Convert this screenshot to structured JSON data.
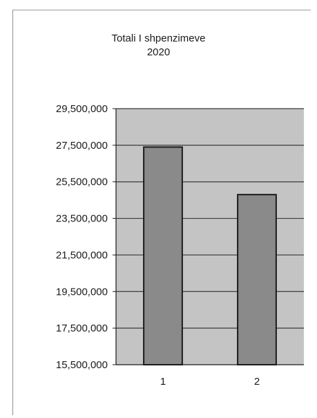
{
  "chart_data": {
    "type": "bar",
    "title": "Totali I shpenzimeve",
    "subtitle": "2020",
    "xlabel": "",
    "ylabel": "",
    "categories": [
      "1",
      "2"
    ],
    "values": [
      27400000,
      24800000
    ],
    "ylim": [
      15500000,
      29500000
    ],
    "yticks": [
      15500000,
      17500000,
      19500000,
      21500000,
      23500000,
      25500000,
      27500000,
      29500000
    ],
    "ytick_labels": [
      "15,500,000",
      "17,500,000",
      "19,500,000",
      "21,500,000",
      "23,500,000",
      "25,500,000",
      "27,500,000",
      "29,500,000"
    ],
    "grid": true,
    "legend": "none",
    "colors": {
      "plot_background": "#c4c4c4",
      "bar_fill": "#8a8a8a",
      "bar_stroke": "#1a1a1a",
      "gridline": "#3a3a3a"
    }
  }
}
